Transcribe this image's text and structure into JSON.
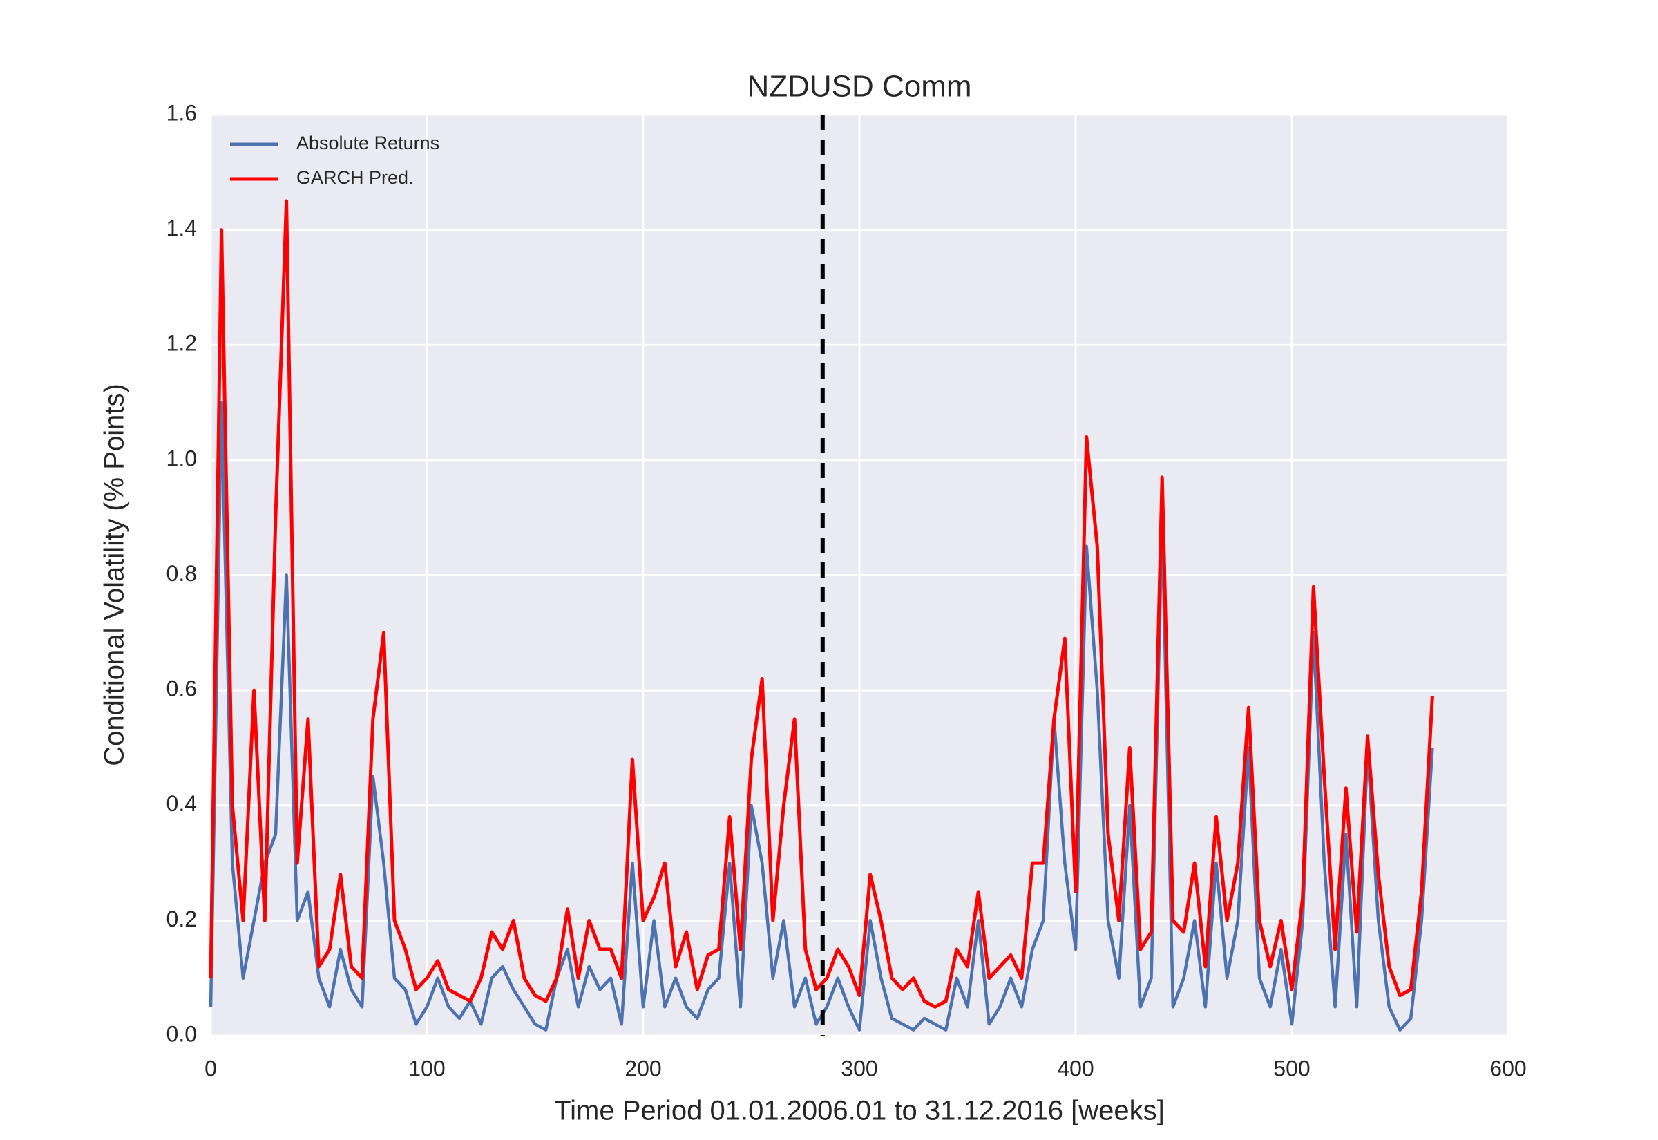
{
  "chart_data": {
    "type": "line",
    "title": "NZDUSD Comm",
    "xlabel": "Time Period 01.01.2006.01 to 31.12.2016 [weeks]",
    "ylabel": "Conditional Volatility (% Points)",
    "x": [
      0,
      5,
      10,
      15,
      20,
      25,
      30,
      35,
      40,
      45,
      50,
      55,
      60,
      65,
      70,
      75,
      80,
      85,
      90,
      95,
      100,
      105,
      110,
      115,
      120,
      125,
      130,
      135,
      140,
      145,
      150,
      155,
      160,
      165,
      170,
      175,
      180,
      185,
      190,
      195,
      200,
      205,
      210,
      215,
      220,
      225,
      230,
      235,
      240,
      245,
      250,
      255,
      260,
      265,
      270,
      275,
      280,
      285,
      290,
      295,
      300,
      305,
      310,
      315,
      320,
      325,
      330,
      335,
      340,
      345,
      350,
      355,
      360,
      365,
      370,
      375,
      380,
      385,
      390,
      395,
      400,
      405,
      410,
      415,
      420,
      425,
      430,
      435,
      440,
      445,
      450,
      455,
      460,
      465,
      470,
      475,
      480,
      485,
      490,
      495,
      500,
      505,
      510,
      515,
      520,
      525,
      530,
      535,
      540,
      545,
      550,
      555,
      560,
      565
    ],
    "series": [
      {
        "name": "Absolute Returns",
        "color": "#4c72b0",
        "values": [
          0.05,
          1.1,
          0.3,
          0.1,
          0.2,
          0.3,
          0.35,
          0.8,
          0.2,
          0.25,
          0.1,
          0.05,
          0.15,
          0.08,
          0.05,
          0.45,
          0.3,
          0.1,
          0.08,
          0.02,
          0.05,
          0.1,
          0.05,
          0.03,
          0.06,
          0.02,
          0.1,
          0.12,
          0.08,
          0.05,
          0.02,
          0.01,
          0.1,
          0.15,
          0.05,
          0.12,
          0.08,
          0.1,
          0.02,
          0.3,
          0.05,
          0.2,
          0.05,
          0.1,
          0.05,
          0.03,
          0.08,
          0.1,
          0.3,
          0.05,
          0.4,
          0.3,
          0.1,
          0.2,
          0.05,
          0.1,
          0.02,
          0.05,
          0.1,
          0.05,
          0.01,
          0.2,
          0.1,
          0.03,
          0.02,
          0.01,
          0.03,
          0.02,
          0.01,
          0.1,
          0.05,
          0.2,
          0.02,
          0.05,
          0.1,
          0.05,
          0.15,
          0.2,
          0.55,
          0.3,
          0.15,
          0.85,
          0.6,
          0.2,
          0.1,
          0.4,
          0.05,
          0.1,
          0.9,
          0.05,
          0.1,
          0.2,
          0.05,
          0.3,
          0.1,
          0.2,
          0.5,
          0.1,
          0.05,
          0.15,
          0.02,
          0.2,
          0.7,
          0.3,
          0.05,
          0.35,
          0.05,
          0.5,
          0.2,
          0.05,
          0.01,
          0.03,
          0.2,
          0.5
        ]
      },
      {
        "name": "GARCH Pred.",
        "color": "#ff0000",
        "values": [
          0.1,
          1.4,
          0.4,
          0.2,
          0.6,
          0.2,
          0.9,
          1.45,
          0.3,
          0.55,
          0.12,
          0.15,
          0.28,
          0.12,
          0.1,
          0.55,
          0.7,
          0.2,
          0.15,
          0.08,
          0.1,
          0.13,
          0.08,
          0.07,
          0.06,
          0.1,
          0.18,
          0.15,
          0.2,
          0.1,
          0.07,
          0.06,
          0.1,
          0.22,
          0.1,
          0.2,
          0.15,
          0.15,
          0.1,
          0.48,
          0.2,
          0.24,
          0.3,
          0.12,
          0.18,
          0.08,
          0.14,
          0.15,
          0.38,
          0.15,
          0.48,
          0.62,
          0.2,
          0.4,
          0.55,
          0.15,
          0.08,
          0.1,
          0.15,
          0.12,
          0.07,
          0.28,
          0.2,
          0.1,
          0.08,
          0.1,
          0.06,
          0.05,
          0.06,
          0.15,
          0.12,
          0.25,
          0.1,
          0.12,
          0.14,
          0.1,
          0.3,
          0.3,
          0.55,
          0.69,
          0.25,
          1.04,
          0.85,
          0.35,
          0.2,
          0.5,
          0.15,
          0.18,
          0.97,
          0.2,
          0.18,
          0.3,
          0.12,
          0.38,
          0.2,
          0.3,
          0.57,
          0.2,
          0.12,
          0.2,
          0.08,
          0.24,
          0.78,
          0.45,
          0.15,
          0.43,
          0.18,
          0.52,
          0.28,
          0.12,
          0.07,
          0.08,
          0.25,
          0.59
        ]
      }
    ],
    "vline": 283,
    "xlim": [
      0,
      600
    ],
    "xticks": [
      0,
      100,
      200,
      300,
      400,
      500,
      600
    ],
    "ylim": [
      0,
      1.6
    ],
    "yticks": [
      {
        "value": 0,
        "label": "0.0"
      },
      0.2,
      0.4,
      0.6,
      0.8,
      {
        "value": 1,
        "label": "1.0"
      },
      1.2,
      1.4,
      1.6
    ],
    "grid": true,
    "legend": "upper left"
  }
}
